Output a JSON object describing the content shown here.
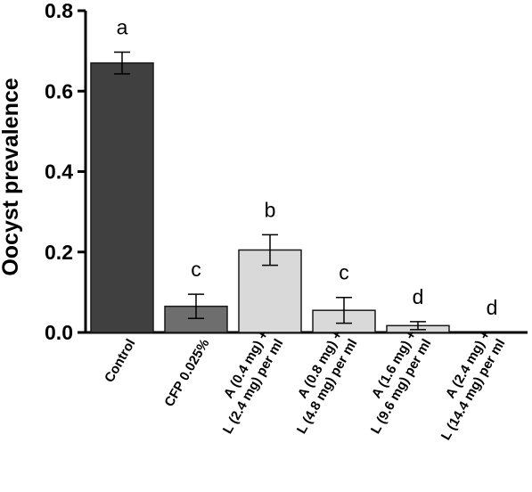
{
  "chart_data": {
    "type": "bar",
    "ylabel": "Oocyst prevalence",
    "ylim": [
      0,
      0.8
    ],
    "yticks": [
      "0.0",
      "0.2",
      "0.4",
      "0.6",
      "0.8"
    ],
    "categories": [
      [
        "Control"
      ],
      [
        "CFP 0.025%"
      ],
      [
        "A (0.4 mg) +",
        "L (2.4 mg) per ml"
      ],
      [
        "A (0.8 mg) +",
        "L (4.8 mg) per ml"
      ],
      [
        "A (1.6  mg) +",
        "L (9.6 mg) per ml"
      ],
      [
        "A (2.4 mg) +",
        "L (14.4 mg) per ml"
      ]
    ],
    "values": [
      0.67,
      0.065,
      0.205,
      0.055,
      0.017,
      0.0
    ],
    "errors": [
      0.027,
      0.03,
      0.038,
      0.032,
      0.01,
      0.0
    ],
    "significance": [
      "a",
      "c",
      "b",
      "c",
      "d",
      "d"
    ],
    "bar_colors": [
      "#404040",
      "#6e6e6e",
      "#d9d9d9",
      "#d9d9d9",
      "#d9d9d9",
      "#d9d9d9"
    ],
    "grid": false,
    "legend": "none"
  }
}
